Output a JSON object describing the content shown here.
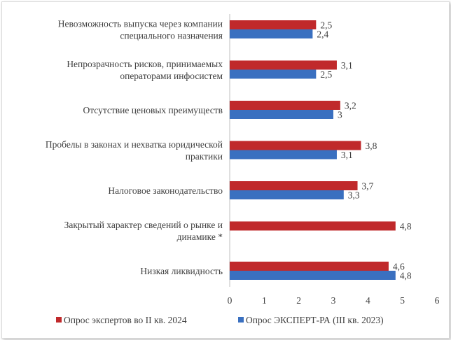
{
  "chart_data": {
    "type": "bar",
    "orientation": "horizontal",
    "categories": [
      [
        "Невозможность выпуска через компании",
        "специального назначения"
      ],
      [
        "Непрозрачность рисков, принимаемых",
        "операторами инфосистем"
      ],
      [
        "Отсутствие ценовых преимуществ"
      ],
      [
        "Пробелы в законах и нехватка юридической",
        "практики"
      ],
      [
        "Налоговое законодательство"
      ],
      [
        "Закрытый характер сведений о рынке и",
        "динамике *"
      ],
      [
        "Низкая ликвидность"
      ]
    ],
    "series": [
      {
        "name": "Опрос экспертов во II кв. 2024",
        "color": "#c0292b",
        "values": [
          2.5,
          3.1,
          3.2,
          3.8,
          3.7,
          4.8,
          4.6
        ],
        "labels": [
          "2,5",
          "3,1",
          "3,2",
          "3,8",
          "3,7",
          "4,8",
          "4,6"
        ]
      },
      {
        "name": "Опрос ЭКСПЕРТ-РА (III кв. 2023)",
        "color": "#3a70c0",
        "values": [
          2.4,
          2.5,
          3.0,
          3.1,
          3.3,
          null,
          4.8
        ],
        "labels": [
          "2,4",
          "2,5",
          "3",
          "3,1",
          "3,3",
          "",
          "4,8"
        ]
      }
    ],
    "xlim": [
      0,
      6
    ],
    "xticks": [
      0,
      1,
      2,
      3,
      4,
      5,
      6
    ],
    "grid": false,
    "legend_position": "bottom"
  }
}
